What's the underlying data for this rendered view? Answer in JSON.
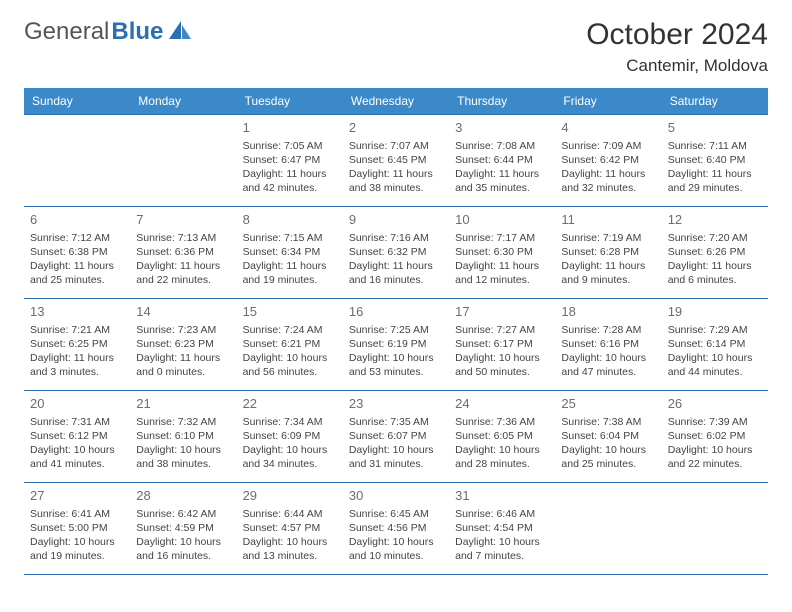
{
  "logo": {
    "part1": "General",
    "part2": "Blue"
  },
  "title": "October 2024",
  "location": "Cantemir, Moldova",
  "colors": {
    "header_bg": "#3b89c9",
    "border": "#2b6fb0",
    "text": "#444444",
    "daynum": "#6d6d6d"
  },
  "day_headers": [
    "Sunday",
    "Monday",
    "Tuesday",
    "Wednesday",
    "Thursday",
    "Friday",
    "Saturday"
  ],
  "weeks": [
    [
      {
        "n": "",
        "l1": "",
        "l2": "",
        "l3": "",
        "l4": ""
      },
      {
        "n": "",
        "l1": "",
        "l2": "",
        "l3": "",
        "l4": ""
      },
      {
        "n": "1",
        "l1": "Sunrise: 7:05 AM",
        "l2": "Sunset: 6:47 PM",
        "l3": "Daylight: 11 hours",
        "l4": "and 42 minutes."
      },
      {
        "n": "2",
        "l1": "Sunrise: 7:07 AM",
        "l2": "Sunset: 6:45 PM",
        "l3": "Daylight: 11 hours",
        "l4": "and 38 minutes."
      },
      {
        "n": "3",
        "l1": "Sunrise: 7:08 AM",
        "l2": "Sunset: 6:44 PM",
        "l3": "Daylight: 11 hours",
        "l4": "and 35 minutes."
      },
      {
        "n": "4",
        "l1": "Sunrise: 7:09 AM",
        "l2": "Sunset: 6:42 PM",
        "l3": "Daylight: 11 hours",
        "l4": "and 32 minutes."
      },
      {
        "n": "5",
        "l1": "Sunrise: 7:11 AM",
        "l2": "Sunset: 6:40 PM",
        "l3": "Daylight: 11 hours",
        "l4": "and 29 minutes."
      }
    ],
    [
      {
        "n": "6",
        "l1": "Sunrise: 7:12 AM",
        "l2": "Sunset: 6:38 PM",
        "l3": "Daylight: 11 hours",
        "l4": "and 25 minutes."
      },
      {
        "n": "7",
        "l1": "Sunrise: 7:13 AM",
        "l2": "Sunset: 6:36 PM",
        "l3": "Daylight: 11 hours",
        "l4": "and 22 minutes."
      },
      {
        "n": "8",
        "l1": "Sunrise: 7:15 AM",
        "l2": "Sunset: 6:34 PM",
        "l3": "Daylight: 11 hours",
        "l4": "and 19 minutes."
      },
      {
        "n": "9",
        "l1": "Sunrise: 7:16 AM",
        "l2": "Sunset: 6:32 PM",
        "l3": "Daylight: 11 hours",
        "l4": "and 16 minutes."
      },
      {
        "n": "10",
        "l1": "Sunrise: 7:17 AM",
        "l2": "Sunset: 6:30 PM",
        "l3": "Daylight: 11 hours",
        "l4": "and 12 minutes."
      },
      {
        "n": "11",
        "l1": "Sunrise: 7:19 AM",
        "l2": "Sunset: 6:28 PM",
        "l3": "Daylight: 11 hours",
        "l4": "and 9 minutes."
      },
      {
        "n": "12",
        "l1": "Sunrise: 7:20 AM",
        "l2": "Sunset: 6:26 PM",
        "l3": "Daylight: 11 hours",
        "l4": "and 6 minutes."
      }
    ],
    [
      {
        "n": "13",
        "l1": "Sunrise: 7:21 AM",
        "l2": "Sunset: 6:25 PM",
        "l3": "Daylight: 11 hours",
        "l4": "and 3 minutes."
      },
      {
        "n": "14",
        "l1": "Sunrise: 7:23 AM",
        "l2": "Sunset: 6:23 PM",
        "l3": "Daylight: 11 hours",
        "l4": "and 0 minutes."
      },
      {
        "n": "15",
        "l1": "Sunrise: 7:24 AM",
        "l2": "Sunset: 6:21 PM",
        "l3": "Daylight: 10 hours",
        "l4": "and 56 minutes."
      },
      {
        "n": "16",
        "l1": "Sunrise: 7:25 AM",
        "l2": "Sunset: 6:19 PM",
        "l3": "Daylight: 10 hours",
        "l4": "and 53 minutes."
      },
      {
        "n": "17",
        "l1": "Sunrise: 7:27 AM",
        "l2": "Sunset: 6:17 PM",
        "l3": "Daylight: 10 hours",
        "l4": "and 50 minutes."
      },
      {
        "n": "18",
        "l1": "Sunrise: 7:28 AM",
        "l2": "Sunset: 6:16 PM",
        "l3": "Daylight: 10 hours",
        "l4": "and 47 minutes."
      },
      {
        "n": "19",
        "l1": "Sunrise: 7:29 AM",
        "l2": "Sunset: 6:14 PM",
        "l3": "Daylight: 10 hours",
        "l4": "and 44 minutes."
      }
    ],
    [
      {
        "n": "20",
        "l1": "Sunrise: 7:31 AM",
        "l2": "Sunset: 6:12 PM",
        "l3": "Daylight: 10 hours",
        "l4": "and 41 minutes."
      },
      {
        "n": "21",
        "l1": "Sunrise: 7:32 AM",
        "l2": "Sunset: 6:10 PM",
        "l3": "Daylight: 10 hours",
        "l4": "and 38 minutes."
      },
      {
        "n": "22",
        "l1": "Sunrise: 7:34 AM",
        "l2": "Sunset: 6:09 PM",
        "l3": "Daylight: 10 hours",
        "l4": "and 34 minutes."
      },
      {
        "n": "23",
        "l1": "Sunrise: 7:35 AM",
        "l2": "Sunset: 6:07 PM",
        "l3": "Daylight: 10 hours",
        "l4": "and 31 minutes."
      },
      {
        "n": "24",
        "l1": "Sunrise: 7:36 AM",
        "l2": "Sunset: 6:05 PM",
        "l3": "Daylight: 10 hours",
        "l4": "and 28 minutes."
      },
      {
        "n": "25",
        "l1": "Sunrise: 7:38 AM",
        "l2": "Sunset: 6:04 PM",
        "l3": "Daylight: 10 hours",
        "l4": "and 25 minutes."
      },
      {
        "n": "26",
        "l1": "Sunrise: 7:39 AM",
        "l2": "Sunset: 6:02 PM",
        "l3": "Daylight: 10 hours",
        "l4": "and 22 minutes."
      }
    ],
    [
      {
        "n": "27",
        "l1": "Sunrise: 6:41 AM",
        "l2": "Sunset: 5:00 PM",
        "l3": "Daylight: 10 hours",
        "l4": "and 19 minutes."
      },
      {
        "n": "28",
        "l1": "Sunrise: 6:42 AM",
        "l2": "Sunset: 4:59 PM",
        "l3": "Daylight: 10 hours",
        "l4": "and 16 minutes."
      },
      {
        "n": "29",
        "l1": "Sunrise: 6:44 AM",
        "l2": "Sunset: 4:57 PM",
        "l3": "Daylight: 10 hours",
        "l4": "and 13 minutes."
      },
      {
        "n": "30",
        "l1": "Sunrise: 6:45 AM",
        "l2": "Sunset: 4:56 PM",
        "l3": "Daylight: 10 hours",
        "l4": "and 10 minutes."
      },
      {
        "n": "31",
        "l1": "Sunrise: 6:46 AM",
        "l2": "Sunset: 4:54 PM",
        "l3": "Daylight: 10 hours",
        "l4": "and 7 minutes."
      },
      {
        "n": "",
        "l1": "",
        "l2": "",
        "l3": "",
        "l4": ""
      },
      {
        "n": "",
        "l1": "",
        "l2": "",
        "l3": "",
        "l4": ""
      }
    ]
  ]
}
